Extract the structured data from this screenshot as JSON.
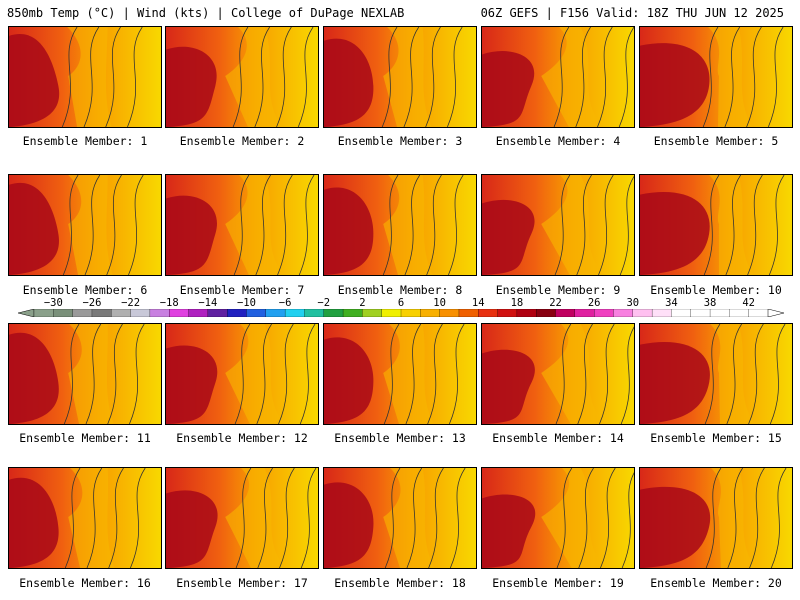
{
  "header": {
    "left": "850mb Temp (°C) | Wind (kts) | College of DuPage NEXLAB",
    "right": "06Z GEFS | F156 Valid: 18Z THU JUN 12 2025"
  },
  "member_label_prefix": "Ensemble Member: ",
  "members": [
    "1",
    "2",
    "3",
    "4",
    "5",
    "6",
    "7",
    "8",
    "9",
    "10",
    "11",
    "12",
    "13",
    "14",
    "15",
    "16",
    "17",
    "18",
    "19",
    "20"
  ],
  "colorbar": {
    "min": -32,
    "max": 44,
    "step": 2,
    "tick_labels": [
      "−30",
      "−26",
      "−22",
      "−18",
      "−14",
      "−10",
      "−6",
      "−2",
      "2",
      "6",
      "10",
      "14",
      "18",
      "22",
      "26",
      "30",
      "34",
      "38",
      "42"
    ],
    "colors": [
      "#8aa08a",
      "#7a907a",
      "#9a9a9a",
      "#7a7a7a",
      "#b0b0b0",
      "#c8c8d8",
      "#c880e0",
      "#e040e0",
      "#b020c0",
      "#6020a0",
      "#2020c0",
      "#2060e0",
      "#20a0f0",
      "#20d0f0",
      "#20c0a0",
      "#20a040",
      "#40b020",
      "#a0d020",
      "#f0f000",
      "#f8d000",
      "#f8b000",
      "#f89000",
      "#f06000",
      "#e83010",
      "#d01010",
      "#b00010",
      "#880010",
      "#c00060",
      "#e020a0",
      "#f040c0",
      "#f880e0",
      "#ffc0f0",
      "#ffe0f8",
      "#ffffff",
      "#ffffff",
      "#ffffff",
      "#ffffff",
      "#ffffff"
    ]
  }
}
